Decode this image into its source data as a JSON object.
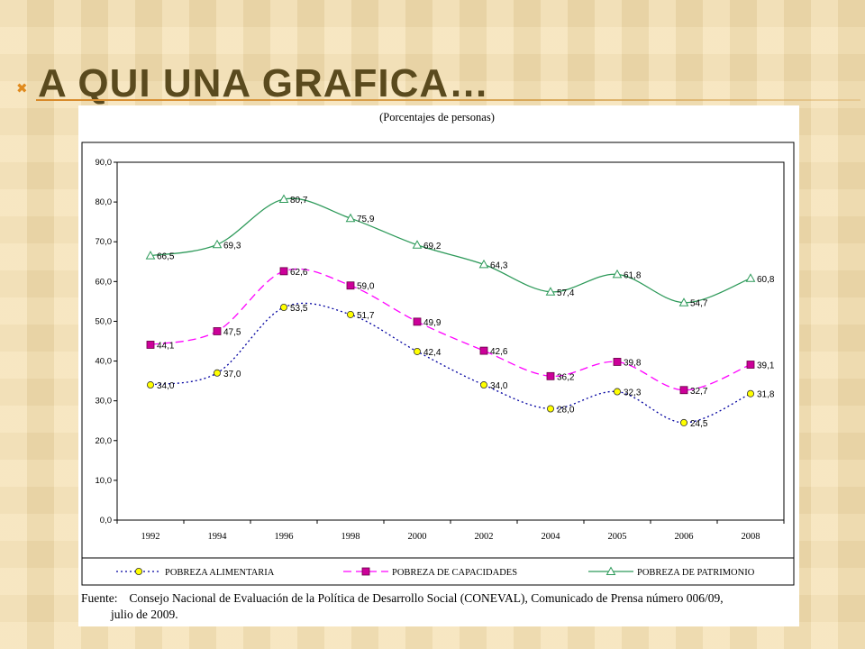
{
  "slide": {
    "bullet": "✖",
    "title": "A QUI UNA GRAFICA…"
  },
  "chart_data": {
    "type": "line",
    "title": "(Porcentajes de personas)",
    "categories": [
      "1992",
      "1994",
      "1996",
      "1998",
      "2000",
      "2002",
      "2004",
      "2005",
      "2006",
      "2008"
    ],
    "ylim": [
      0,
      90
    ],
    "y_ticks": [
      "0,0",
      "10,0",
      "20,0",
      "30,0",
      "40,0",
      "50,0",
      "60,0",
      "70,0",
      "80,0",
      "90,0"
    ],
    "grid": false,
    "legend_position": "bottom",
    "series": [
      {
        "name": "POBREZA ALIMENTARIA",
        "color": "#0000a0",
        "marker": "circle",
        "marker_fill": "#ffff00",
        "line_style": "dotted",
        "values": [
          34.0,
          37.0,
          53.5,
          51.7,
          42.4,
          34.0,
          28.0,
          32.3,
          24.5,
          31.8
        ],
        "labels": [
          "34,0",
          "37,0",
          "53,5",
          "51,7",
          "42,4",
          "34,0",
          "28,0",
          "32,3",
          "24,5",
          "31,8"
        ]
      },
      {
        "name": "POBREZA DE CAPACIDADES",
        "color": "#ff00ff",
        "marker": "square",
        "marker_fill": "#cc0099",
        "line_style": "dashed",
        "values": [
          44.1,
          47.5,
          62.6,
          59.0,
          49.9,
          42.6,
          36.2,
          39.8,
          32.7,
          39.1
        ],
        "labels": [
          "44,1",
          "47,5",
          "62,6",
          "59,0",
          "49,9",
          "42,6",
          "36,2",
          "39,8",
          "32,7",
          "39,1"
        ]
      },
      {
        "name": "POBREZA DE PATRIMONIO",
        "color": "#2e9a5a",
        "marker": "triangle",
        "marker_fill": "#ffffff",
        "line_style": "solid",
        "values": [
          66.5,
          69.3,
          80.7,
          75.9,
          69.2,
          64.3,
          57.4,
          61.8,
          54.7,
          60.8
        ],
        "labels": [
          "66,5",
          "69,3",
          "80,7",
          "75,9",
          "69,2",
          "64,3",
          "57,4",
          "61,8",
          "54,7",
          "60,8"
        ]
      }
    ]
  },
  "source": {
    "label": "Fuente:",
    "text": "Consejo Nacional de Evaluación de la Política de Desarrollo Social (CONEVAL), Comunicado de Prensa número 006/09,",
    "text_cont": "julio de 2009."
  }
}
